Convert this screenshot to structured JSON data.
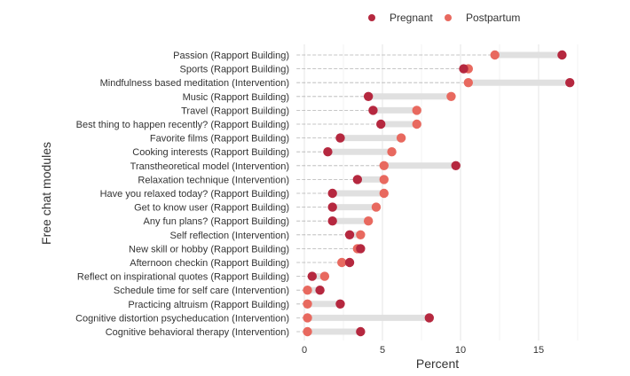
{
  "chart_data": {
    "type": "dumbbell",
    "xlabel": "Percent",
    "ylabel": "Free chat modules",
    "xlim": [
      -0.5,
      18
    ],
    "x_ticks": [
      0,
      5,
      10,
      15
    ],
    "grid": true,
    "legend_position": "top",
    "series": [
      {
        "name": "Pregnant",
        "color": "#b5283f"
      },
      {
        "name": "Postpartum",
        "color": "#e8695f"
      }
    ],
    "categories": [
      {
        "label": "Passion (Rapport Building)",
        "pregnant": 16.5,
        "postpartum": 12.2
      },
      {
        "label": "Sports (Rapport Building)",
        "pregnant": 10.2,
        "postpartum": 10.5
      },
      {
        "label": "Mindfulness based meditation (Intervention)",
        "pregnant": 17.0,
        "postpartum": 10.5
      },
      {
        "label": "Music (Rapport Building)",
        "pregnant": 4.1,
        "postpartum": 9.4
      },
      {
        "label": "Travel  (Rapport Building)",
        "pregnant": 4.4,
        "postpartum": 7.2
      },
      {
        "label": "Best thing to happen recently? (Rapport Building)",
        "pregnant": 4.9,
        "postpartum": 7.2
      },
      {
        "label": "Favorite films (Rapport Building)",
        "pregnant": 2.3,
        "postpartum": 6.2
      },
      {
        "label": "Cooking interests (Rapport Building)",
        "pregnant": 1.5,
        "postpartum": 5.6
      },
      {
        "label": "Transtheoretical model (Intervention)",
        "pregnant": 9.7,
        "postpartum": 5.1
      },
      {
        "label": "Relaxation technique (Intervention)",
        "pregnant": 3.4,
        "postpartum": 5.1
      },
      {
        "label": "Have you relaxed today? (Rapport Building)",
        "pregnant": 1.8,
        "postpartum": 5.1
      },
      {
        "label": "Get to know user (Rapport Building)",
        "pregnant": 1.8,
        "postpartum": 4.6
      },
      {
        "label": "Any fun plans? (Rapport Building)",
        "pregnant": 1.8,
        "postpartum": 4.1
      },
      {
        "label": "Self reflection (Intervention)",
        "pregnant": 2.9,
        "postpartum": 3.6
      },
      {
        "label": "New skill or hobby (Rapport Building)",
        "pregnant": 3.6,
        "postpartum": 3.4
      },
      {
        "label": "Afternoon checkin (Rapport Building)",
        "pregnant": 2.9,
        "postpartum": 2.4
      },
      {
        "label": "Reflect on inspirational quotes (Rapport Building)",
        "pregnant": 0.5,
        "postpartum": 1.3
      },
      {
        "label": "Schedule time for self care (Intervention)",
        "pregnant": 1.0,
        "postpartum": 0.2
      },
      {
        "label": "Practicing altruism (Rapport Building)",
        "pregnant": 2.3,
        "postpartum": 0.2
      },
      {
        "label": "Cognitive distortion psycheducation (Intervention)",
        "pregnant": 8.0,
        "postpartum": 0.2
      },
      {
        "label": "Cognitive behavioral therapy (Intervention)",
        "pregnant": 3.6,
        "postpartum": 0.2
      }
    ]
  }
}
